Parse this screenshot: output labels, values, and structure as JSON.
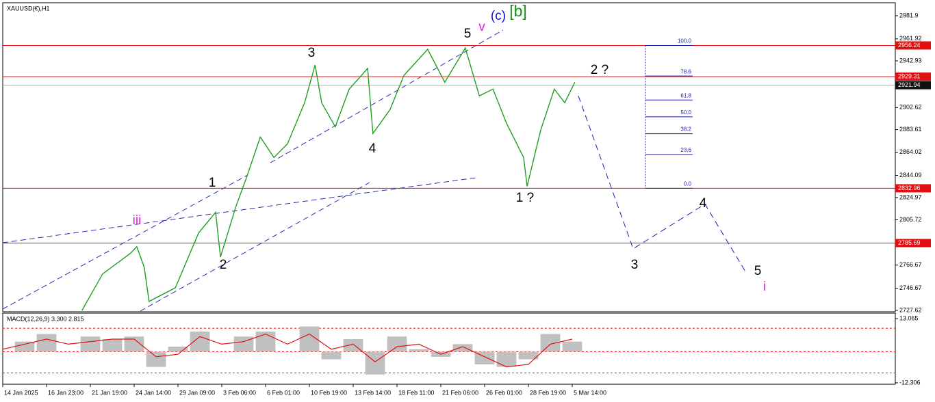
{
  "chart_data": {
    "type": "line",
    "title": "XAUUSD(€),H1",
    "categories": [
      "14 Jan 2025",
      "16 Jan 23:00",
      "21 Jan 19:00",
      "24 Jan 14:00",
      "29 Jan 09:00",
      "3 Feb 06:00",
      "6 Feb 01:00",
      "10 Feb 19:00",
      "13 Feb 14:00",
      "18 Feb 11:00",
      "21 Feb 06:00",
      "26 Feb 01:00",
      "28 Feb 19:00",
      "5 Mar 14:00"
    ],
    "xlim": [
      0,
      20.375
    ],
    "ylim": [
      2726.4,
      2993.1
    ],
    "yticks": [
      2981.9,
      2961.92,
      2942.93,
      2902.62,
      2883.61,
      2864.02,
      2844.09,
      2824.97,
      2805.72,
      2766.67,
      2746.67,
      2727.62
    ],
    "x": [
      1.81,
      2.28,
      2.91,
      3.06,
      3.23,
      3.34,
      3.94,
      4.47,
      4.86,
      4.97,
      5.33,
      5.56,
      5.88,
      6.19,
      6.5,
      6.89,
      7.13,
      7.28,
      7.59,
      7.91,
      8.33,
      8.45,
      8.84,
      9.16,
      9.7,
      10.09,
      10.56,
      10.88,
      11.19,
      11.5,
      11.89,
      11.97,
      12.28,
      12.59,
      12.83,
      13.06
    ],
    "values": [
      2727.6,
      2759,
      2776.7,
      2782.6,
      2764.8,
      2735.3,
      2747.1,
      2794.4,
      2812.2,
      2773.7,
      2818,
      2841.7,
      2877.2,
      2859.5,
      2871.3,
      2906.8,
      2939.3,
      2906.8,
      2886,
      2918.6,
      2936.4,
      2880.2,
      2900.9,
      2930.5,
      2952.9,
      2924.5,
      2954.1,
      2912.7,
      2918.6,
      2889.1,
      2859.5,
      2834.7,
      2883.1,
      2918.6,
      2906.8,
      2924.5
    ],
    "color": "#1f9e1f",
    "forecast": {
      "x": [
        13.14,
        14.39,
        16.03,
        16.94
      ],
      "values": [
        2912.7,
        2780.8,
        2819.3,
        2761.9
      ],
      "color": "#1a1aa8"
    },
    "levels": [
      2956.24,
      2929.31,
      2832.96,
      2785.69
    ],
    "level_color": "#e01010",
    "current_price": 2921.94,
    "fib": {
      "high": 2956.24,
      "low": 2832.96,
      "color": "#1a1aa8",
      "levels": [
        {
          "value": 100,
          "label": "100.0"
        },
        78.6,
        61.8,
        {
          "value": 50,
          "label": "50.0"
        },
        38.2,
        23.6,
        {
          "value": 0,
          "label": "0.0"
        }
      ]
    },
    "annotations": [
      {
        "text": "3",
        "color": "#000000"
      },
      {
        "text": "5",
        "color": "#000000"
      },
      {
        "text": "v",
        "color": "#e020e0"
      },
      {
        "text": "(c)",
        "color": "#1010d0"
      },
      {
        "text": "[b]",
        "color": "#189018"
      },
      {
        "text": "4",
        "color": "#000000"
      },
      {
        "text": "1",
        "color": "#000000"
      },
      {
        "text": "2",
        "color": "#000000"
      },
      {
        "text": "iii",
        "color": "#e020e0"
      },
      {
        "text": "1 ?",
        "color": "#000000"
      },
      {
        "text": "2 ?",
        "color": "#000000"
      },
      {
        "text": "3",
        "color": "#000000"
      },
      {
        "text": "4",
        "color": "#000000"
      },
      {
        "text": "5",
        "color": "#000000"
      },
      {
        "text": "i",
        "color": "#e020e0"
      }
    ],
    "indicator": {
      "type": "macd",
      "title": "MACD(12,26,9) 3.300 2.815",
      "ylim": [
        -12.86,
        15.27
      ],
      "yticks": [
        13.065,
        -12.306
      ],
      "levels": [
        9.3,
        0,
        -8.4
      ],
      "x": [
        0,
        0.5,
        1,
        1.5,
        2,
        2.5,
        3,
        3.5,
        4,
        4.5,
        5,
        5.5,
        6,
        6.5,
        7,
        7.5,
        8,
        8.5,
        9,
        9.5,
        10,
        10.5,
        11,
        11.5,
        12,
        12.5,
        13
      ],
      "histogram": [
        0,
        4,
        7,
        0,
        6,
        5,
        6,
        -6,
        2,
        8,
        0,
        6,
        8,
        0,
        10,
        -3,
        5,
        -9,
        6,
        1,
        -2,
        3,
        -5,
        -6,
        -3,
        7,
        4
      ],
      "signal": [
        1,
        3,
        5,
        3,
        4,
        5,
        5,
        -2,
        -1,
        6,
        3,
        4,
        7,
        3,
        7,
        1,
        3,
        -4,
        2,
        3,
        -1,
        2,
        -2,
        -6,
        -5,
        3,
        5
      ],
      "histogram_color": "#c0c0c0",
      "signal_color": "#e01010"
    }
  }
}
